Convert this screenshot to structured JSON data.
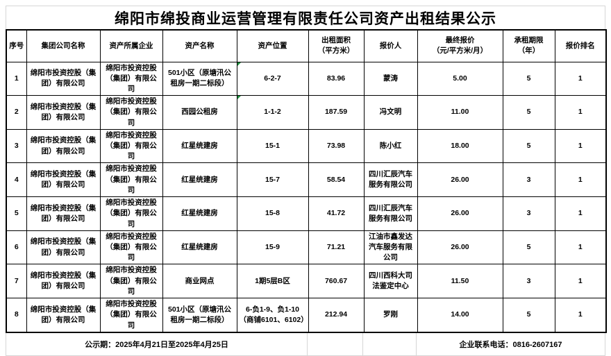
{
  "title": "绵阳市绵投商业运营管理有限责任公司资产出租结果公示",
  "table": {
    "headers": [
      "序号",
      "集团公司名称",
      "资产所属企业",
      "资产名称",
      "资产位置",
      "出租面积\n（平方米）",
      "报价人",
      "最终报价\n（元/平方米/月）",
      "承租期限\n（年）",
      "报价排名"
    ],
    "rows": [
      {
        "cells": [
          "1",
          "绵阳市投资控股（集团）有限公司",
          "绵阳市投资控股（集团）有限公司",
          "501小区（原塘汛公租房一期二标段）",
          "6-2-7",
          "83.96",
          "蒙涛",
          "5.00",
          "5",
          "1"
        ],
        "flag_location": true
      },
      {
        "cells": [
          "2",
          "绵阳市投资控股（集团）有限公司",
          "绵阳市投资控股（集团）有限公司",
          "西园公租房",
          "1-1-2",
          "187.59",
          "冯文明",
          "11.00",
          "5",
          "1"
        ],
        "flag_location": true
      },
      {
        "cells": [
          "3",
          "绵阳市投资控股（集团）有限公司",
          "绵阳市投资控股（集团）有限公司",
          "红星统建房",
          "15-1",
          "73.98",
          "陈小红",
          "18.00",
          "5",
          "1"
        ],
        "flag_location": false
      },
      {
        "cells": [
          "4",
          "绵阳市投资控股（集团）有限公司",
          "绵阳市投资控股（集团）有限公司",
          "红星统建房",
          "15-7",
          "58.54",
          "四川汇辰汽车服务有限公司",
          "26.00",
          "3",
          "1"
        ],
        "flag_location": false
      },
      {
        "cells": [
          "5",
          "绵阳市投资控股（集团）有限公司",
          "绵阳市投资控股（集团）有限公司",
          "红星统建房",
          "15-8",
          "41.72",
          "四川汇辰汽车服务有限公司",
          "26.00",
          "3",
          "1"
        ],
        "flag_location": false
      },
      {
        "cells": [
          "6",
          "绵阳市投资控股（集团）有限公司",
          "绵阳市投资控股（集团）有限公司",
          "红星统建房",
          "15-9",
          "71.21",
          "江油市鑫发达汽车服务有限公司",
          "26.00",
          "5",
          "1"
        ],
        "flag_location": false
      },
      {
        "cells": [
          "7",
          "绵阳市投资控股（集团）有限公司",
          "绵阳市投资控股（集团）有限公司",
          "商业网点",
          "1期5层B区",
          "760.67",
          "四川西科大司法鉴定中心",
          "11.50",
          "3",
          "1"
        ],
        "flag_location": false
      },
      {
        "cells": [
          "8",
          "绵阳市投资控股（集团）有限公司",
          "绵阳市投资控股（集团）有限公司",
          "501小区（原塘汛公租房一期二标段）",
          "6-负1-9、负1-10（商铺6101、6102）",
          "212.94",
          "罗刚",
          "14.00",
          "5",
          "1"
        ],
        "flag_location": false
      }
    ]
  },
  "footer": {
    "publicity_period": "公示期：2025年4月21日至2025年4月25日",
    "contact_phone": "企业联系电话：0816-2607167"
  },
  "colors": {
    "border_dark": "#000000",
    "border_light": "#d6d6d6",
    "flag_green": "#1e8e3e",
    "text": "#000000",
    "background": "#ffffff"
  }
}
